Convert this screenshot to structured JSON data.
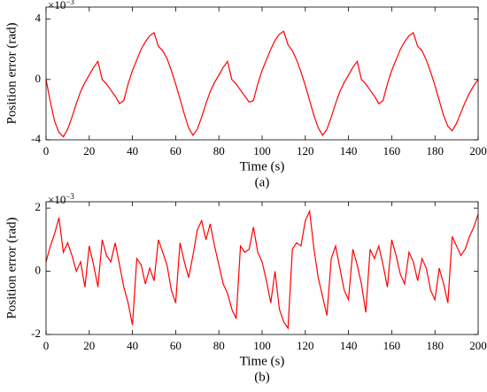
{
  "chart_data": [
    {
      "type": "line",
      "ylabel": "Position error (rad)",
      "xlabel": "Time (s)",
      "caption": "(a)",
      "multiplier": {
        "base": "×10",
        "exponent": "−3"
      },
      "xlim": [
        0,
        200
      ],
      "xticks": [
        0,
        20,
        40,
        60,
        80,
        100,
        120,
        140,
        160,
        180,
        200
      ],
      "ylim": [
        -4,
        4.8
      ],
      "yticks": [
        -4,
        0,
        4
      ],
      "x": [
        0,
        2,
        4,
        6,
        8,
        10,
        12,
        14,
        16,
        18,
        20,
        22,
        24,
        26,
        28,
        30,
        32,
        34,
        36,
        38,
        40,
        42,
        44,
        46,
        48,
        50,
        52,
        54,
        56,
        58,
        60,
        62,
        64,
        66,
        68,
        70,
        72,
        74,
        76,
        78,
        80,
        82,
        84,
        86,
        88,
        90,
        92,
        94,
        96,
        98,
        100,
        102,
        104,
        106,
        108,
        110,
        112,
        114,
        116,
        118,
        120,
        122,
        124,
        126,
        128,
        130,
        132,
        134,
        136,
        138,
        140,
        142,
        144,
        146,
        148,
        150,
        152,
        154,
        156,
        158,
        160,
        162,
        164,
        166,
        168,
        170,
        172,
        174,
        176,
        178,
        180,
        182,
        184,
        186,
        188,
        190,
        192,
        194,
        196,
        198,
        200
      ],
      "series": [
        {
          "color": "#ff0000",
          "values": [
            0,
            -1.5,
            -2.8,
            -3.5,
            -3.8,
            -3.3,
            -2.5,
            -1.6,
            -0.8,
            -0.2,
            0.3,
            0.8,
            1.2,
            0,
            -0.3,
            -0.7,
            -1.1,
            -1.6,
            -1.4,
            -0.3,
            0.6,
            1.3,
            2,
            2.5,
            2.9,
            3.1,
            2.2,
            1.9,
            1.4,
            0.6,
            -0.3,
            -1.3,
            -2.3,
            -3.2,
            -3.7,
            -3.3,
            -2.5,
            -1.6,
            -0.8,
            -0.2,
            0.3,
            0.8,
            1.2,
            0,
            -0.3,
            -0.7,
            -1.1,
            -1.5,
            -1.4,
            -0.3,
            0.6,
            1.3,
            2,
            2.6,
            3,
            3.2,
            2.3,
            1.9,
            1.3,
            0.5,
            -0.4,
            -1.4,
            -2.4,
            -3.2,
            -3.7,
            -3.3,
            -2.5,
            -1.6,
            -0.8,
            -0.2,
            0.3,
            0.8,
            1.2,
            0,
            -0.3,
            -0.7,
            -1.1,
            -1.6,
            -1.4,
            -0.3,
            0.6,
            1.3,
            2,
            2.5,
            2.9,
            3.1,
            2.2,
            1.9,
            1.3,
            0.5,
            -0.4,
            -1.4,
            -2.4,
            -3.1,
            -3.4,
            -2.9,
            -2.2,
            -1.5,
            -0.9,
            -0.4,
            0
          ]
        }
      ]
    },
    {
      "type": "line",
      "ylabel": "Position error (rad)",
      "xlabel": "Time (s)",
      "caption": "(b)",
      "multiplier": {
        "base": "×10",
        "exponent": "−3"
      },
      "xlim": [
        0,
        200
      ],
      "xticks": [
        0,
        20,
        40,
        60,
        80,
        100,
        120,
        140,
        160,
        180,
        200
      ],
      "ylim": [
        -2,
        2.2
      ],
      "yticks": [
        -2,
        0,
        2
      ],
      "x": [
        0,
        2,
        4,
        6,
        8,
        10,
        12,
        14,
        16,
        18,
        20,
        22,
        24,
        26,
        28,
        30,
        32,
        34,
        36,
        38,
        40,
        42,
        44,
        46,
        48,
        50,
        52,
        54,
        56,
        58,
        60,
        62,
        64,
        66,
        68,
        70,
        72,
        74,
        76,
        78,
        80,
        82,
        84,
        86,
        88,
        90,
        92,
        94,
        96,
        98,
        100,
        102,
        104,
        106,
        108,
        110,
        112,
        114,
        116,
        118,
        120,
        122,
        124,
        126,
        128,
        130,
        132,
        134,
        136,
        138,
        140,
        142,
        144,
        146,
        148,
        150,
        152,
        154,
        156,
        158,
        160,
        162,
        164,
        166,
        168,
        170,
        172,
        174,
        176,
        178,
        180,
        182,
        184,
        186,
        188,
        190,
        192,
        194,
        196,
        198,
        200
      ],
      "series": [
        {
          "color": "#ff0000",
          "values": [
            0.3,
            0.8,
            1.2,
            1.7,
            0.6,
            0.9,
            0.5,
            0,
            0.3,
            -0.5,
            0.8,
            0.2,
            -0.5,
            1.0,
            0.5,
            0.3,
            0.9,
            0.2,
            -0.5,
            -1.0,
            -1.7,
            0.4,
            0.2,
            -0.4,
            0.1,
            -0.3,
            1,
            0.6,
            0.2,
            -0.6,
            -1.0,
            0.9,
            0.3,
            -0.2,
            0.5,
            1.3,
            1.6,
            1.0,
            1.5,
            0.8,
            0.2,
            -0.4,
            -0.7,
            -1.2,
            -1.5,
            0.8,
            0.6,
            0.7,
            1.4,
            0.6,
            0.3,
            -0.3,
            -1.0,
            0,
            -1.2,
            -1.6,
            -1.8,
            0.7,
            0.9,
            0.8,
            1.6,
            1.9,
            0.7,
            -0.2,
            -0.8,
            -1.4,
            0.4,
            0.8,
            0.1,
            -0.6,
            -0.9,
            0.7,
            0.2,
            -0.4,
            -1.3,
            0.7,
            0.4,
            0.8,
            0.2,
            -0.5,
            1.0,
            0.5,
            -0.1,
            -0.4,
            0.6,
            0.3,
            -0.3,
            0.4,
            0.1,
            -0.6,
            -0.9,
            0.1,
            -0.4,
            -1.0,
            1.1,
            0.8,
            0.5,
            0.7,
            1.1,
            1.4,
            1.8
          ]
        }
      ]
    }
  ]
}
